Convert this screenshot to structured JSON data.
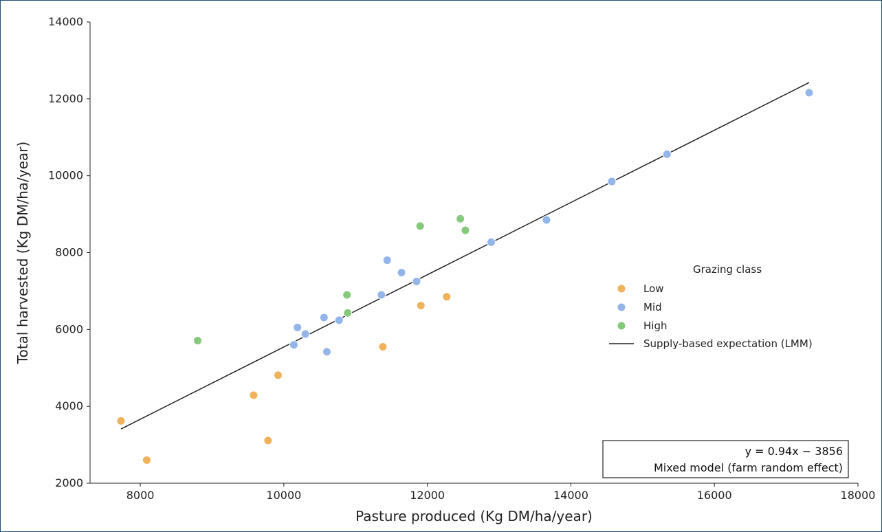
{
  "chart_data": {
    "type": "scatter",
    "xlabel": "Pasture produced (Kg DM/ha/year)",
    "ylabel": "Total harvested (Kg DM/ha/year)",
    "xlim": [
      7300,
      18000
    ],
    "ylim": [
      2000,
      14000
    ],
    "x_ticks": [
      8000,
      10000,
      12000,
      14000,
      16000,
      18000
    ],
    "y_ticks": [
      2000,
      4000,
      6000,
      8000,
      10000,
      12000,
      14000
    ],
    "grid": false,
    "legend": {
      "title": "Grazing class",
      "placement": "center-right",
      "line_label": "Supply-based expectation (LMM)"
    },
    "series": [
      {
        "name": "Low",
        "color": "#f0b25a",
        "points": [
          [
            7730,
            3620
          ],
          [
            8090,
            2600
          ],
          [
            9580,
            4290
          ],
          [
            9780,
            3110
          ],
          [
            9920,
            4810
          ],
          [
            11380,
            5550
          ],
          [
            11910,
            6620
          ],
          [
            12270,
            6850
          ]
        ]
      },
      {
        "name": "Mid",
        "color": "#93b5ea",
        "points": [
          [
            10140,
            5600
          ],
          [
            10190,
            6050
          ],
          [
            10300,
            5880
          ],
          [
            10560,
            6310
          ],
          [
            10600,
            5420
          ],
          [
            10770,
            6240
          ],
          [
            11360,
            6900
          ],
          [
            11440,
            7800
          ],
          [
            11640,
            7480
          ],
          [
            11850,
            7250
          ],
          [
            12890,
            8270
          ],
          [
            13660,
            8850
          ],
          [
            14570,
            9850
          ],
          [
            15340,
            10560
          ],
          [
            17320,
            12160
          ]
        ]
      },
      {
        "name": "High",
        "color": "#86c97c",
        "points": [
          [
            8800,
            5710
          ],
          [
            10880,
            6900
          ],
          [
            10890,
            6430
          ],
          [
            11900,
            8690
          ],
          [
            12460,
            8880
          ],
          [
            12530,
            8580
          ]
        ]
      }
    ],
    "fit_line": {
      "label": "Supply-based expectation (LMM)",
      "color": "#222222",
      "x": [
        7730,
        17320
      ]
    },
    "annotation": {
      "line1": "y = 0.94x − 3856",
      "line2": "Mixed model (farm random effect)"
    }
  }
}
